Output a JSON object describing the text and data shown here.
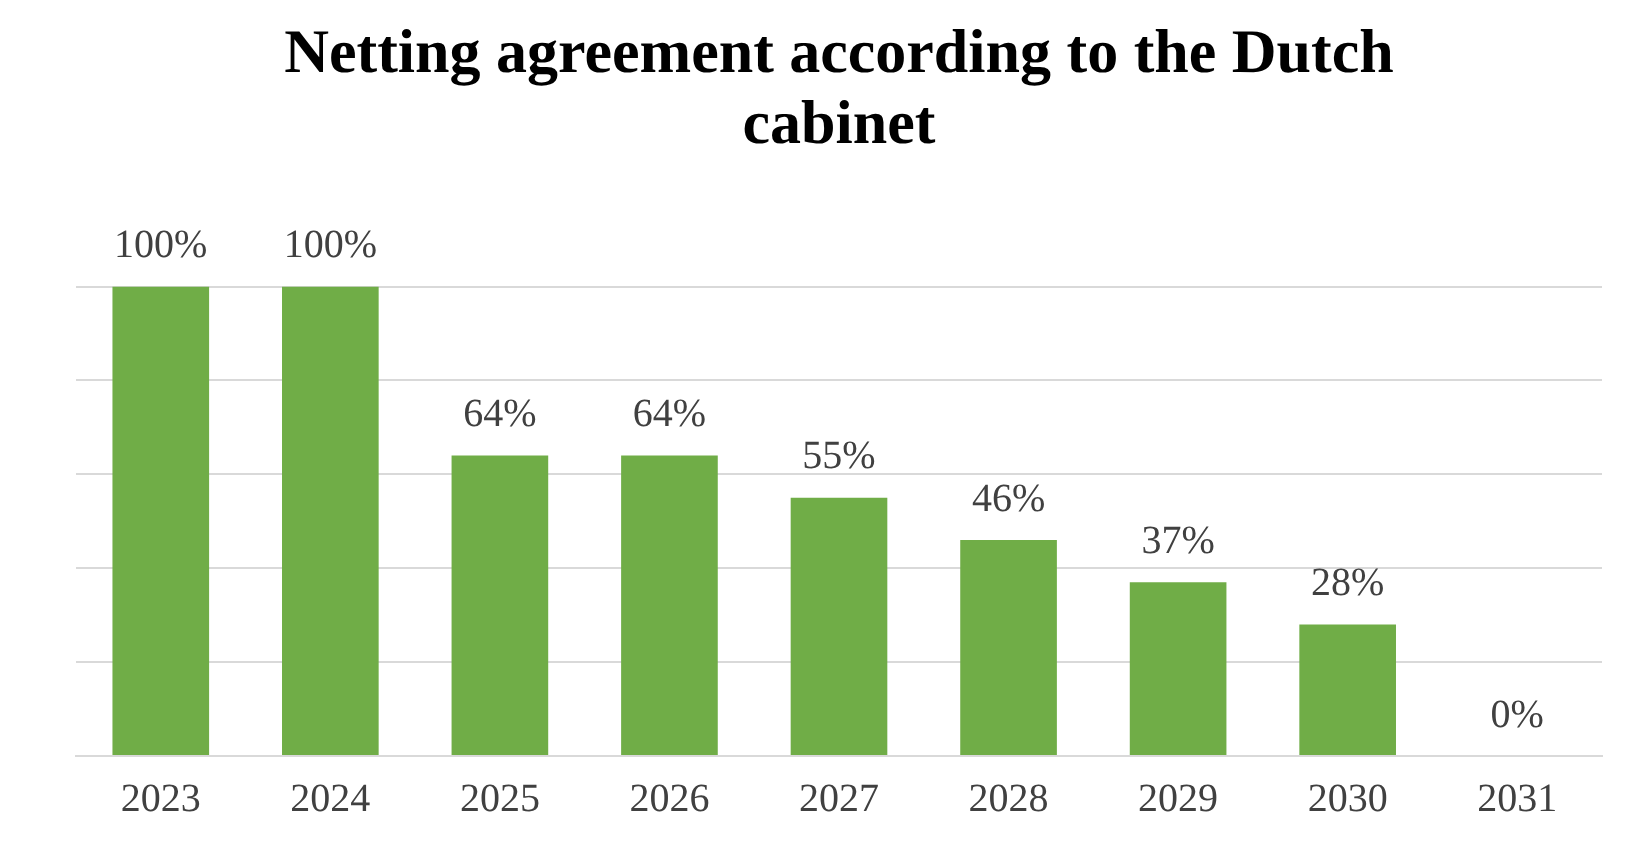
{
  "chart_data": {
    "type": "bar",
    "title": "Netting agreement according to the Dutch cabinet",
    "categories": [
      "2023",
      "2024",
      "2025",
      "2026",
      "2027",
      "2028",
      "2029",
      "2030",
      "2031"
    ],
    "values": [
      100,
      100,
      64,
      64,
      55,
      46,
      37,
      28,
      0
    ],
    "value_labels": [
      "100%",
      "100%",
      "64%",
      "64%",
      "55%",
      "46%",
      "37%",
      "28%",
      "0%"
    ],
    "color": "#70ad47",
    "ylim": [
      0,
      100
    ],
    "yticks": [
      {
        "value": 0,
        "label": null
      },
      {
        "value": 20,
        "label": null
      },
      {
        "value": 40,
        "label": null
      },
      {
        "value": 60,
        "label": null
      },
      {
        "value": 80,
        "label": null
      },
      {
        "value": 100,
        "label": null
      }
    ],
    "grid": "y",
    "tick_labels": "x",
    "legend": false
  }
}
